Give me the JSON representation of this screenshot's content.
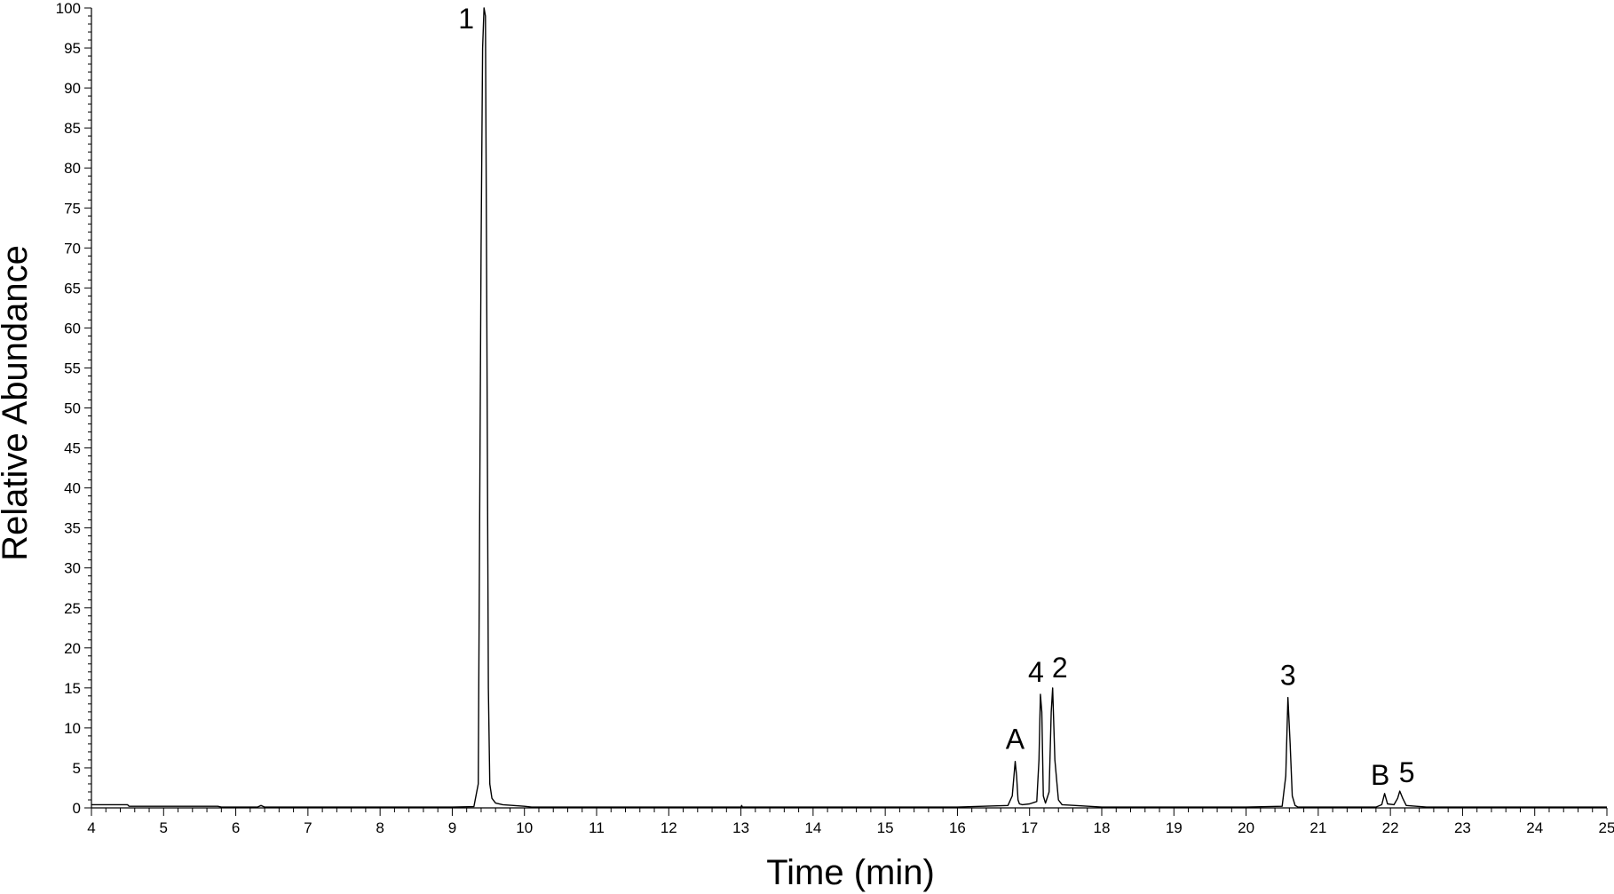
{
  "chart_data": {
    "type": "line",
    "xlabel": "Time (min)",
    "ylabel": "Relative Abundance",
    "xlim": [
      4,
      25
    ],
    "ylim": [
      0,
      100
    ],
    "x_ticks": [
      4,
      5,
      6,
      7,
      8,
      9,
      10,
      11,
      12,
      13,
      14,
      15,
      16,
      17,
      18,
      19,
      20,
      21,
      22,
      23,
      24,
      25
    ],
    "y_ticks": [
      0,
      5,
      10,
      15,
      20,
      25,
      30,
      35,
      40,
      45,
      50,
      55,
      60,
      65,
      70,
      75,
      80,
      85,
      90,
      95,
      100
    ],
    "grid": false,
    "line_color": "#000000",
    "series": [
      {
        "x": [
          4.0,
          4.5,
          4.52,
          5.0,
          5.5,
          5.75,
          5.8,
          6.3,
          6.35,
          6.4,
          7.0,
          8.0,
          9.0,
          9.3,
          9.36,
          9.4,
          9.42,
          9.44,
          9.46,
          9.48,
          9.5,
          9.52,
          9.55,
          9.6,
          9.7,
          10.0,
          10.1,
          11.0,
          12.0,
          13.0,
          13.01,
          13.02,
          14.0,
          15.0,
          16.0,
          16.7,
          16.76,
          16.8,
          16.82,
          16.84,
          16.86,
          16.9,
          17.0,
          17.1,
          17.13,
          17.15,
          17.17,
          17.19,
          17.22,
          17.27,
          17.3,
          17.32,
          17.35,
          17.4,
          17.45,
          18.0,
          19.0,
          20.0,
          20.5,
          20.55,
          20.58,
          20.61,
          20.64,
          20.68,
          20.72,
          21.0,
          21.8,
          21.88,
          21.92,
          21.96,
          22.05,
          22.1,
          22.13,
          22.17,
          22.22,
          22.5,
          23.0,
          24.0,
          25.0
        ],
        "y": [
          0.4,
          0.4,
          0.2,
          0.2,
          0.2,
          0.2,
          0.1,
          0.1,
          0.3,
          0.1,
          0.1,
          0.1,
          0.1,
          0.15,
          3,
          70,
          95,
          100,
          99,
          60,
          15,
          3,
          1.2,
          0.6,
          0.4,
          0.2,
          0.1,
          0.1,
          0.1,
          0.1,
          0.3,
          0.1,
          0.1,
          0.1,
          0.1,
          0.3,
          1.5,
          5.8,
          4,
          1,
          0.5,
          0.4,
          0.5,
          0.8,
          6,
          14.2,
          12,
          1.5,
          0.6,
          2,
          12,
          15,
          6,
          1,
          0.4,
          0.1,
          0.1,
          0.1,
          0.2,
          4,
          13.8,
          8,
          1.5,
          0.3,
          0.1,
          0.1,
          0.1,
          0.4,
          1.8,
          0.5,
          0.4,
          1.2,
          2.1,
          1.2,
          0.3,
          0.1,
          0.1,
          0.1,
          0.1
        ]
      }
    ],
    "annotations": [
      {
        "text": "1",
        "x": 9.44,
        "y": 100
      },
      {
        "text": "A",
        "x": 16.8,
        "y": 5.8
      },
      {
        "text": "4",
        "x": 17.15,
        "y": 14.2
      },
      {
        "text": "2",
        "x": 17.32,
        "y": 15
      },
      {
        "text": "3",
        "x": 20.58,
        "y": 13.8
      },
      {
        "text": "B",
        "x": 21.92,
        "y": 1.8
      },
      {
        "text": "5",
        "x": 22.13,
        "y": 2.1
      }
    ]
  }
}
